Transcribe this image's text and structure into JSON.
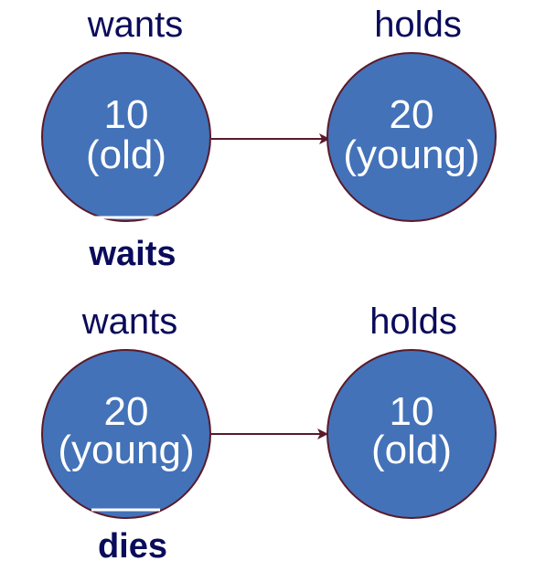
{
  "colors": {
    "node_fill": "#4372b8",
    "node_stroke": "#5a1a2a",
    "arrow": "#5a1a2a",
    "label": "#0b0b5c",
    "node_text": "#ffffff"
  },
  "scenarios": [
    {
      "left_header": "wants",
      "right_header": "holds",
      "left_node": {
        "line1": "10",
        "line2": "(old)"
      },
      "right_node": {
        "line1": "20",
        "line2": "(young)"
      },
      "outcome": "waits"
    },
    {
      "left_header": "wants",
      "right_header": "holds",
      "left_node": {
        "line1": "20",
        "line2": "(young)"
      },
      "right_node": {
        "line1": "10",
        "line2": "(old)"
      },
      "outcome": "dies"
    }
  ]
}
